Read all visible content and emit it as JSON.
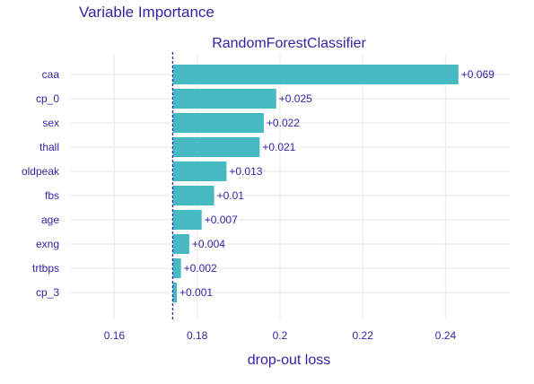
{
  "chart_data": {
    "type": "bar",
    "orientation": "horizontal",
    "title": "Variable Importance",
    "subtitle": "RandomForestClassifier",
    "xlabel": "drop-out loss",
    "ylabel": "",
    "xlim": [
      0.1493,
      0.2555
    ],
    "xticks": [
      0.16,
      0.18,
      0.2,
      0.22,
      0.24
    ],
    "xtick_labels": [
      "0.16",
      "0.18",
      "0.2",
      "0.22",
      "0.24"
    ],
    "baseline": 0.1741,
    "grid": true,
    "bar_color": "#46bac2",
    "baseline_color": "#371ea3",
    "text_color": "#371ea3",
    "categories": [
      "caa",
      "cp_0",
      "sex",
      "thall",
      "oldpeak",
      "fbs",
      "age",
      "exng",
      "trtbps",
      "cp_3"
    ],
    "values": [
      0.2431,
      0.1991,
      0.1961,
      0.1951,
      0.1871,
      0.1841,
      0.1811,
      0.1781,
      0.1761,
      0.1751
    ],
    "labels": [
      "+0.069",
      "+0.025",
      "+0.022",
      "+0.021",
      "+0.013",
      "+0.01",
      "+0.007",
      "+0.004",
      "+0.002",
      "+0.001"
    ]
  }
}
